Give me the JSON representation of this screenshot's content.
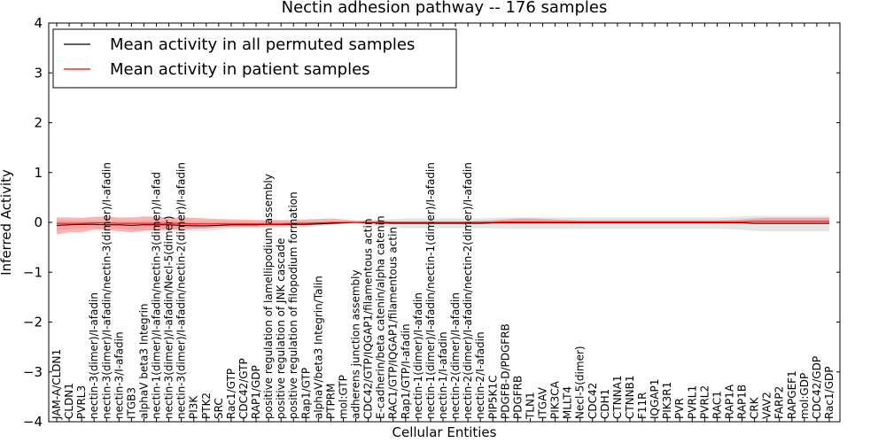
{
  "chart_data": {
    "type": "line",
    "title": "Nectin adhesion pathway -- 176 samples",
    "xlabel": "Cellular Entities",
    "ylabel": "Inferred Activity",
    "ylim": [
      -4,
      4
    ],
    "yticks": [
      -4,
      -3,
      -2,
      -1,
      0,
      1,
      2,
      3,
      4
    ],
    "ytick_labels": [
      "−4",
      "−3",
      "−2",
      "−1",
      "0",
      "1",
      "2",
      "3",
      "4"
    ],
    "legend_position": "top-left",
    "categories": [
      "JAM-A/CLDN1",
      "CLDN1",
      "PVRL3",
      "nectin-3(dimer)/I-afadin",
      "nectin-3(dimer)/I-afadin/nectin-3(dimer)/I-afadin",
      "nectin-3/I-afadin",
      "ITGB3",
      "alphaV beta3 Integrin",
      "nectin-1(dimer)/I-afadin/nectin-3(dimer)/I-afad",
      "nectin-3(dimer)/I-afadin/Necl-5(dimer)",
      "nectin-3(dimer)/I-afadin/nectin-2(dimer)/I-afadin",
      "PI3K",
      "PTK2",
      "SRC",
      "Rac1/GTP",
      "CDC42/GTP",
      "RAP1/GDP",
      "positive regulation of lamellipodium assembly",
      "positive regulation of JNK cascade",
      "positive regulation of filopodium formation",
      "Rap1/GTP",
      "alphaV/beta3 Integrin/Talin",
      "PTPRM",
      "mol:GTP",
      "adherens junction assembly",
      "CDC42/GTP/IQGAP1/filamentous actin",
      "E-cadherin/beta catenin/alpha catenin",
      "RAC1/GTP/IQGAP1/filamentous actin",
      "Rap1/GTP/I-afadin",
      "nectin-1(dimer)/I-afadin",
      "nectin-1(dimer)/I-afadin/nectin-1(dimer)/I-afadin",
      "nectin-1/I-afadin",
      "nectin-2(dimer)/I-afadin",
      "nectin-2(dimer)/I-afadin/nectin-2(dimer)/I-afadin",
      "nectin-2/I-afadin",
      "PIP5K1C",
      "PDGFB-D/PDGFRB",
      "PDGFRB",
      "TLN1",
      "ITGAV",
      "PIK3CA",
      "MLLT4",
      "Necl-5(dimer)",
      "CDC42",
      "CDH1",
      "CTNNA1",
      "CTNNB1",
      "F11R",
      "IQGAP1",
      "PIK3R1",
      "PVR",
      "PVRL1",
      "PVRL2",
      "RAC1",
      "RAP1A",
      "RAP1B",
      "CRK",
      "VAV2",
      "FARP2",
      "RAPGEF1",
      "mol:GDP",
      "CDC42/GDP",
      "Rac1/GDP"
    ],
    "series": [
      {
        "name": "Mean activity in all permuted samples",
        "color": "#000000",
        "values": [
          -0.06,
          -0.05,
          -0.04,
          -0.04,
          -0.05,
          -0.05,
          -0.06,
          -0.05,
          -0.05,
          -0.05,
          -0.06,
          -0.07,
          -0.07,
          -0.06,
          -0.05,
          -0.05,
          -0.05,
          -0.04,
          -0.04,
          -0.04,
          -0.04,
          -0.03,
          -0.02,
          -0.01,
          0.0,
          -0.01,
          -0.01,
          -0.02,
          -0.02,
          -0.02,
          -0.02,
          -0.02,
          -0.02,
          -0.02,
          -0.02,
          -0.01,
          -0.01,
          -0.01,
          -0.01,
          -0.01,
          -0.01,
          -0.01,
          -0.01,
          -0.01,
          -0.01,
          -0.01,
          -0.01,
          -0.01,
          -0.01,
          -0.01,
          -0.01,
          -0.01,
          -0.01,
          -0.01,
          -0.01,
          -0.01,
          -0.02,
          -0.02,
          -0.02,
          -0.02,
          -0.02,
          -0.02,
          -0.02
        ],
        "band_lower": [
          -0.16,
          -0.14,
          -0.12,
          -0.12,
          -0.13,
          -0.13,
          -0.15,
          -0.15,
          -0.15,
          -0.15,
          -0.16,
          -0.17,
          -0.17,
          -0.15,
          -0.13,
          -0.12,
          -0.12,
          -0.1,
          -0.1,
          -0.1,
          -0.1,
          -0.08,
          -0.05,
          -0.03,
          -0.02,
          -0.06,
          -0.08,
          -0.1,
          -0.12,
          -0.12,
          -0.12,
          -0.12,
          -0.12,
          -0.12,
          -0.12,
          -0.12,
          -0.13,
          -0.13,
          -0.13,
          -0.13,
          -0.13,
          -0.13,
          -0.13,
          -0.13,
          -0.13,
          -0.13,
          -0.13,
          -0.13,
          -0.13,
          -0.13,
          -0.13,
          -0.13,
          -0.13,
          -0.13,
          -0.14,
          -0.15,
          -0.17,
          -0.18,
          -0.18,
          -0.18,
          -0.18,
          -0.18,
          -0.18
        ],
        "band_upper": [
          0.04,
          0.04,
          0.04,
          0.04,
          0.03,
          0.03,
          0.03,
          0.04,
          0.04,
          0.04,
          0.03,
          0.02,
          0.02,
          0.02,
          0.02,
          0.02,
          0.02,
          0.02,
          0.02,
          0.02,
          0.02,
          0.02,
          0.01,
          0.01,
          0.02,
          0.04,
          0.06,
          0.07,
          0.08,
          0.08,
          0.08,
          0.08,
          0.08,
          0.08,
          0.08,
          0.09,
          0.1,
          0.1,
          0.1,
          0.1,
          0.1,
          0.1,
          0.1,
          0.1,
          0.1,
          0.1,
          0.1,
          0.1,
          0.1,
          0.1,
          0.1,
          0.1,
          0.1,
          0.1,
          0.11,
          0.12,
          0.13,
          0.13,
          0.13,
          0.13,
          0.13,
          0.13,
          0.13
        ]
      },
      {
        "name": "Mean activity in patient samples",
        "color": "#ff0000",
        "values": [
          -0.02,
          -0.02,
          -0.02,
          -0.01,
          -0.01,
          -0.02,
          -0.02,
          -0.02,
          -0.02,
          -0.02,
          -0.02,
          -0.03,
          -0.03,
          -0.03,
          -0.03,
          -0.03,
          -0.03,
          -0.03,
          -0.03,
          -0.02,
          -0.02,
          -0.01,
          0.0,
          0.0,
          0.0,
          0.0,
          0.0,
          0.0,
          0.0,
          0.0,
          0.0,
          0.0,
          0.0,
          0.0,
          0.0,
          0.0,
          0.01,
          0.01,
          0.01,
          0.01,
          0.01,
          0.01,
          0.01,
          0.01,
          0.01,
          0.01,
          0.01,
          0.01,
          0.01,
          0.01,
          0.01,
          0.01,
          0.01,
          0.01,
          0.01,
          0.01,
          0.02,
          0.02,
          0.02,
          0.02,
          0.02,
          0.02,
          0.02
        ],
        "band_lower": [
          -0.24,
          -0.2,
          -0.2,
          -0.15,
          -0.15,
          -0.18,
          -0.2,
          -0.17,
          -0.16,
          -0.15,
          -0.14,
          -0.13,
          -0.12,
          -0.1,
          -0.09,
          -0.09,
          -0.09,
          -0.08,
          -0.07,
          -0.07,
          -0.06,
          -0.05,
          -0.04,
          -0.02,
          -0.02,
          -0.02,
          -0.02,
          -0.02,
          -0.02,
          -0.02,
          -0.02,
          -0.02,
          -0.02,
          -0.02,
          -0.02,
          -0.02,
          -0.02,
          -0.02,
          -0.02,
          -0.02,
          -0.01,
          -0.01,
          -0.01,
          -0.01,
          -0.01,
          -0.01,
          -0.01,
          -0.01,
          -0.01,
          -0.01,
          -0.01,
          -0.01,
          -0.01,
          -0.01,
          -0.01,
          -0.01,
          -0.03,
          -0.03,
          -0.03,
          -0.03,
          -0.03,
          -0.03,
          -0.03
        ],
        "band_upper": [
          0.1,
          0.1,
          0.09,
          0.11,
          0.12,
          0.1,
          0.1,
          0.12,
          0.11,
          0.1,
          0.1,
          0.09,
          0.08,
          0.07,
          0.06,
          0.06,
          0.05,
          0.05,
          0.05,
          0.05,
          0.06,
          0.07,
          0.08,
          0.06,
          0.04,
          0.03,
          0.03,
          0.02,
          0.02,
          0.02,
          0.02,
          0.02,
          0.02,
          0.02,
          0.03,
          0.04,
          0.06,
          0.08,
          0.08,
          0.07,
          0.06,
          0.05,
          0.04,
          0.04,
          0.04,
          0.04,
          0.04,
          0.04,
          0.04,
          0.04,
          0.04,
          0.04,
          0.04,
          0.04,
          0.05,
          0.06,
          0.08,
          0.09,
          0.09,
          0.09,
          0.09,
          0.09,
          0.09
        ]
      }
    ]
  }
}
